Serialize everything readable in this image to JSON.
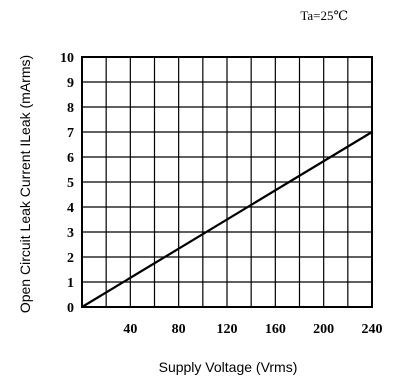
{
  "chart_data": {
    "type": "line",
    "annotation": "Ta=25℃",
    "xlabel": "Supply Voltage (Vrms)",
    "ylabel": "Open Circuit Leak Current ILeak (mArms)",
    "xlim": [
      0,
      240
    ],
    "ylim": [
      0,
      10
    ],
    "grid": true,
    "x_ticks": [
      "40",
      "80",
      "120",
      "160",
      "200",
      "240"
    ],
    "x_tick_values": [
      40,
      80,
      120,
      160,
      200,
      240
    ],
    "y_ticks": [
      "0",
      "1",
      "2",
      "3",
      "4",
      "5",
      "6",
      "7",
      "8",
      "9",
      "10"
    ],
    "y_tick_values": [
      0,
      1,
      2,
      3,
      4,
      5,
      6,
      7,
      8,
      9,
      10
    ],
    "series": [
      {
        "x": [
          0,
          240
        ],
        "y": [
          0,
          7
        ]
      }
    ]
  }
}
